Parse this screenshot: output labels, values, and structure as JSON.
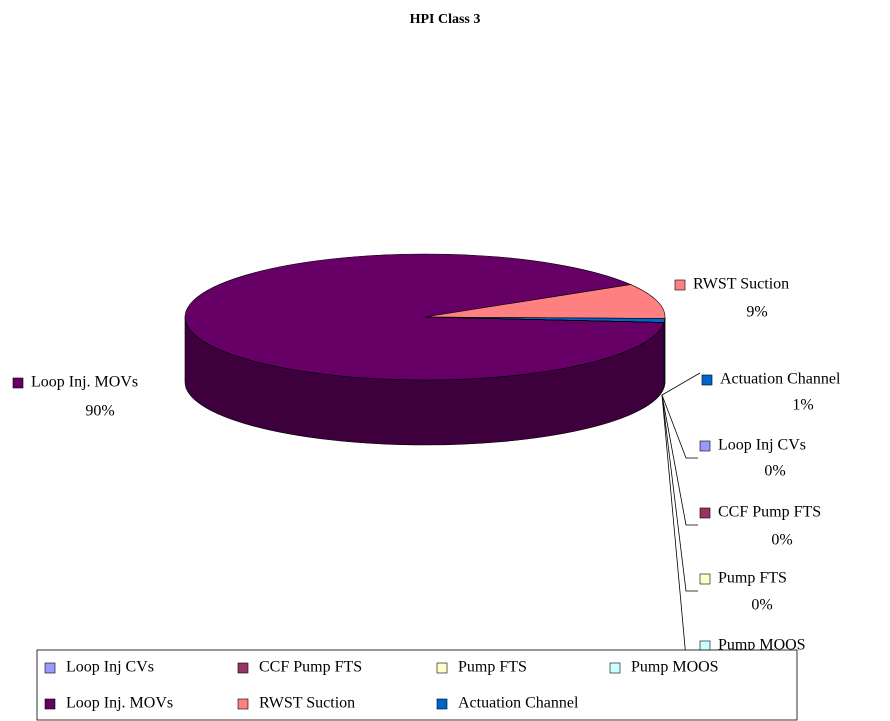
{
  "chart_data": {
    "type": "pie",
    "title": "HPI Class 3",
    "categories": [
      "Loop Inj CVs",
      "CCF Pump FTS",
      "Pump FTS",
      "Pump MOOS",
      "Loop Inj. MOVs",
      "RWST Suction",
      "Actuation Channel"
    ],
    "values": [
      0,
      0,
      0,
      0,
      90,
      9,
      1
    ],
    "value_labels": [
      "0%",
      "0%",
      "0%",
      null,
      "90%",
      "9%",
      "1%"
    ],
    "colors": [
      "#9999ff",
      "#993366",
      "#ffffcc",
      "#ccffff",
      "#660066",
      "#ff8080",
      "#0066cc"
    ],
    "legend": "bottom"
  }
}
